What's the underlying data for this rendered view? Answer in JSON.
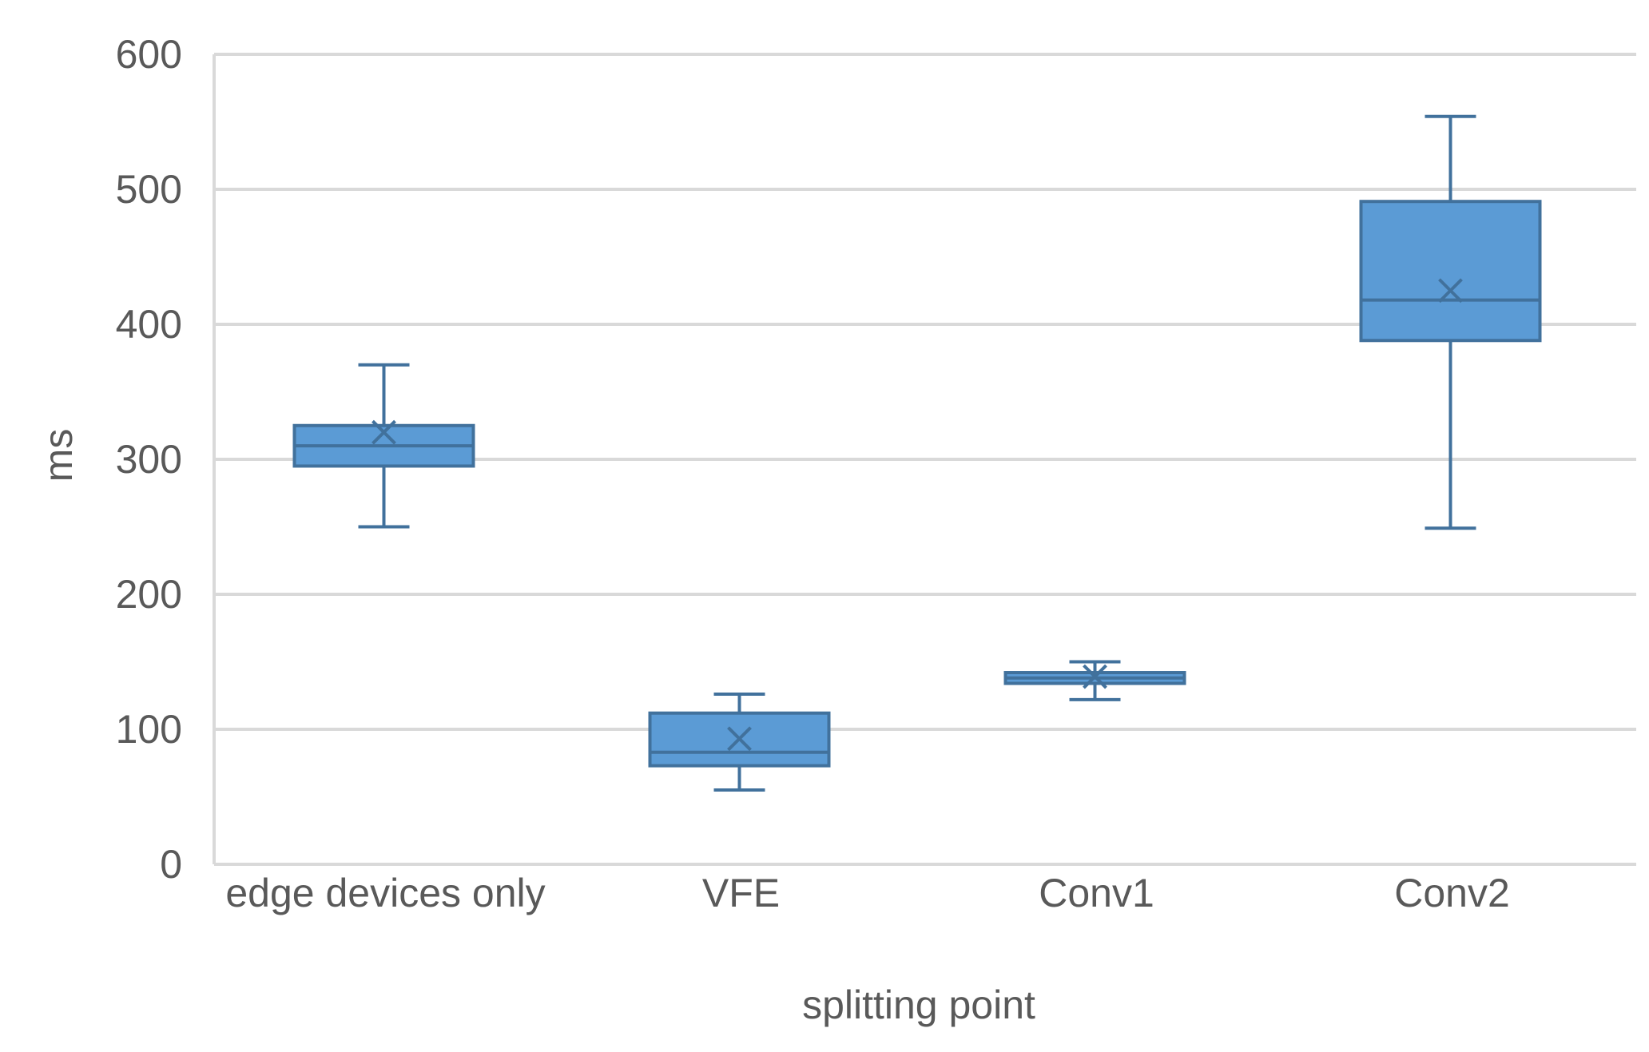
{
  "chart_data": {
    "type": "box",
    "title": "",
    "xlabel": "splitting point",
    "ylabel": "ms",
    "ylim": [
      0,
      600
    ],
    "yticks": [
      0,
      100,
      200,
      300,
      400,
      500,
      600
    ],
    "grid": true,
    "color": "#5b9bd5",
    "edge_color": "#41719c",
    "categories": [
      "edge devices only",
      "VFE",
      "Conv1",
      "Conv2"
    ],
    "boxes": [
      {
        "category": "edge devices only",
        "min": 250,
        "q1": 295,
        "median": 310,
        "q3": 325,
        "max": 370,
        "mean": 320
      },
      {
        "category": "VFE",
        "min": 55,
        "q1": 73,
        "median": 83,
        "q3": 112,
        "max": 126,
        "mean": 93
      },
      {
        "category": "Conv1",
        "min": 122,
        "q1": 134,
        "median": 138,
        "q3": 142,
        "max": 150,
        "mean": 139
      },
      {
        "category": "Conv2",
        "min": 249,
        "q1": 388,
        "median": 418,
        "q3": 491,
        "max": 554,
        "mean": 425
      }
    ]
  }
}
